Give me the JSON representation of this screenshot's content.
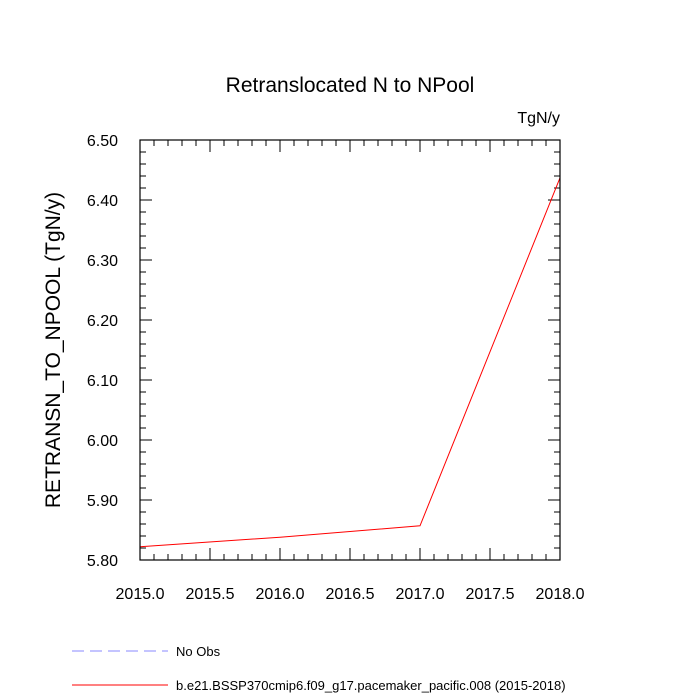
{
  "chart_data": {
    "type": "line",
    "title": "Retranslocated N to NPool",
    "units_label": "TgN/y",
    "ylabel": "RETRANSN_TO_NPOOL  (TgN/y)",
    "xlabel": "",
    "xlim": [
      2015.0,
      2018.0
    ],
    "ylim": [
      5.8,
      6.5
    ],
    "x_ticks": [
      "2015.0",
      "2015.5",
      "2016.0",
      "2016.5",
      "2017.0",
      "2017.5",
      "2018.0"
    ],
    "y_ticks": [
      "5.80",
      "5.90",
      "6.00",
      "6.10",
      "6.20",
      "6.30",
      "6.40",
      "6.50"
    ],
    "grid": false,
    "legend_position": "bottom-left",
    "series": [
      {
        "name": "No Obs",
        "color": "#8a8aff",
        "dash": "dashed",
        "x": [],
        "y": []
      },
      {
        "name": "b.e21.BSSP370cmip6.f09_g17.pacemaker_pacific.008 (2015-2018)",
        "color": "#ff0000",
        "dash": "solid",
        "x": [
          2015.0,
          2016.0,
          2017.0,
          2018.0
        ],
        "y": [
          5.822,
          5.838,
          5.857,
          6.437
        ]
      }
    ]
  }
}
